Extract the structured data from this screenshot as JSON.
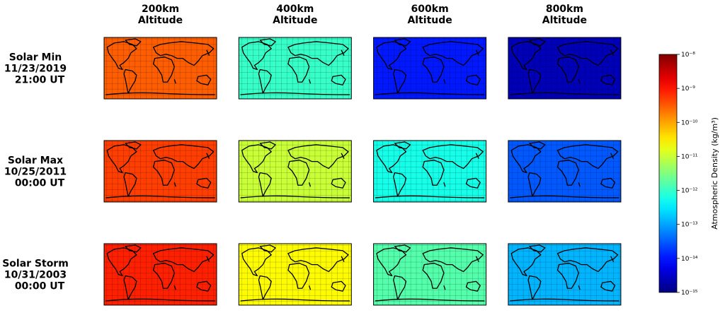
{
  "chart_data": {
    "type": "heatmap",
    "columns": [
      [
        "200km",
        "Altitude"
      ],
      [
        "400km",
        "Altitude"
      ],
      [
        "600km",
        "Altitude"
      ],
      [
        "800km",
        "Altitude"
      ]
    ],
    "rows": [
      [
        "Solar Min",
        "11/23/2019",
        "21:00 UT"
      ],
      [
        "Solar Max",
        "10/25/2011",
        "00:00 UT"
      ],
      [
        "Solar Storm",
        "10/31/2003",
        "00:00 UT"
      ]
    ],
    "values": [
      [
        3e-10,
        1e-12,
        1.1e-14,
        2.5e-15
      ],
      [
        5e-10,
        1e-11,
        6e-13,
        3e-14
      ],
      [
        8e-10,
        2.5e-11,
        1.6e-12,
        1.3e-13
      ]
    ],
    "colorbar": {
      "label": "Atmospheric Density (kg/m³)",
      "scale": "log",
      "colormap": "jet",
      "lim": [
        1e-15,
        1e-08
      ],
      "ticks": [
        {
          "value": 1e-15,
          "label": "10⁻¹⁵"
        },
        {
          "value": 1e-14,
          "label": "10⁻¹⁴"
        },
        {
          "value": 1e-13,
          "label": "10⁻¹³"
        },
        {
          "value": 1e-12,
          "label": "10⁻¹²"
        },
        {
          "value": 1e-11,
          "label": "10⁻¹¹"
        },
        {
          "value": 1e-10,
          "label": "10⁻¹⁰"
        },
        {
          "value": 1e-09,
          "label": "10⁻⁹"
        },
        {
          "value": 1e-08,
          "label": "10⁻⁸"
        }
      ]
    }
  }
}
